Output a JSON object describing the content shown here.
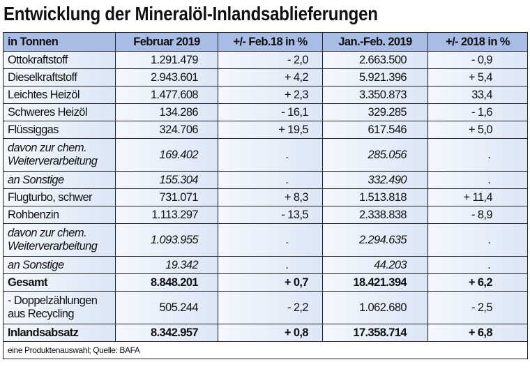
{
  "title": "Entwicklung der Mineralöl-Inlandsablieferungen",
  "columns": [
    "in Tonnen",
    "Februar 2019",
    "+/- Feb.18 in %",
    "Jan.-Feb. 2019",
    "+/- 2018 in %"
  ],
  "rows": [
    {
      "label": "Ottokraftstoff",
      "feb2019": "1.291.479",
      "chg_feb": "- 2,0",
      "janfeb2019": "2.663.500",
      "chg_2018": "- 0,9"
    },
    {
      "label": "Dieselkraftstoff",
      "feb2019": "2.943.601",
      "chg_feb": "+ 4,2",
      "janfeb2019": "5.921.396",
      "chg_2018": "+ 5,4"
    },
    {
      "label": "Leichtes Heizöl",
      "feb2019": "1.477.608",
      "chg_feb": "+ 2,3",
      "janfeb2019": "3.350.873",
      "chg_2018": "33,4"
    },
    {
      "label": "Schweres Heizöl",
      "feb2019": "134.286",
      "chg_feb": "- 16,1",
      "janfeb2019": "329.285",
      "chg_2018": "- 1,6"
    },
    {
      "label": "Flüssiggas",
      "feb2019": "324.706",
      "chg_feb": "+ 19,5",
      "janfeb2019": "617.546",
      "chg_2018": "+ 5,0"
    },
    {
      "label": "davon zur chem. Weiterverarbeitung",
      "feb2019": "169.402",
      "chg_feb": ".",
      "janfeb2019": "285.056",
      "chg_2018": "."
    },
    {
      "label": "an Sonstige",
      "feb2019": "155.304",
      "chg_feb": ".",
      "janfeb2019": "332.490",
      "chg_2018": "."
    },
    {
      "label": "Flugturbo, schwer",
      "feb2019": "731.071",
      "chg_feb": "+ 8,3",
      "janfeb2019": "1.513.818",
      "chg_2018": "+ 11,4"
    },
    {
      "label": "Rohbenzin",
      "feb2019": "1.113.297",
      "chg_feb": "- 13,5",
      "janfeb2019": "2.338.838",
      "chg_2018": "- 8,9"
    },
    {
      "label": "davon zur chem. Weiterverarbeitung",
      "feb2019": "1.093.955",
      "chg_feb": ".",
      "janfeb2019": "2.294.635",
      "chg_2018": "."
    },
    {
      "label": "an Sonstige",
      "feb2019": "19.342",
      "chg_feb": ".",
      "janfeb2019": "44.203",
      "chg_2018": "."
    },
    {
      "label": "Gesamt",
      "feb2019": "8.848.201",
      "chg_feb": "+ 0,7",
      "janfeb2019": "18.421.394",
      "chg_2018": "+ 6,2"
    },
    {
      "label": "- Doppelzählungen aus Recycling",
      "feb2019": "505.244",
      "chg_feb": "- 2,2",
      "janfeb2019": "1.062.680",
      "chg_2018": "- 2,5"
    },
    {
      "label": "Inlandsabsatz",
      "feb2019": "8.342.957",
      "chg_feb": "+ 0,8",
      "janfeb2019": "17.358.714",
      "chg_2018": "+ 6,8"
    }
  ],
  "footer": "eine Produktenauswahl; Quelle: BAFA"
}
